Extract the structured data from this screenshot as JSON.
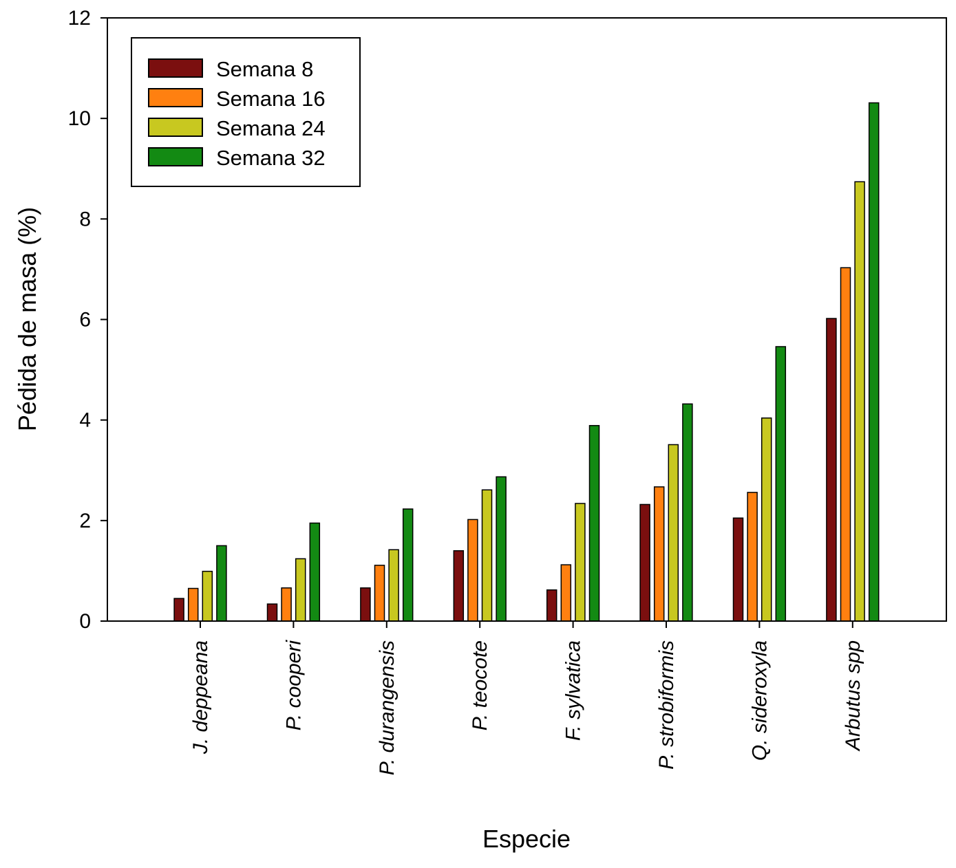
{
  "chart_data": {
    "type": "bar",
    "title": "",
    "xlabel": "Especie",
    "ylabel": "Pédida de masa (%)",
    "ylim": [
      0,
      12
    ],
    "yticks": [
      0,
      2,
      4,
      6,
      8,
      10,
      12
    ],
    "grid": false,
    "legend_position": "top-left",
    "categories": [
      "J. deppeana",
      "P. cooperi",
      "P. durangensis",
      "P. teocote",
      "F. sylvatica",
      "P. strobiformis",
      "Q. sideroxyla",
      "Arbutus spp"
    ],
    "series": [
      {
        "name": "Semana 8",
        "color": "#7b0f0f",
        "values": [
          0.45,
          0.34,
          0.66,
          1.4,
          0.62,
          2.32,
          2.05,
          6.02
        ]
      },
      {
        "name": "Semana 16",
        "color": "#ff8010",
        "values": [
          0.65,
          0.66,
          1.11,
          2.02,
          1.12,
          2.67,
          2.56,
          7.03
        ]
      },
      {
        "name": "Semana 24",
        "color": "#c8c820",
        "values": [
          0.99,
          1.24,
          1.42,
          2.61,
          2.34,
          3.51,
          4.04,
          8.74
        ]
      },
      {
        "name": "Semana 32",
        "color": "#138a13",
        "values": [
          1.5,
          1.95,
          2.23,
          2.87,
          3.89,
          4.32,
          5.46,
          10.31
        ]
      }
    ]
  }
}
